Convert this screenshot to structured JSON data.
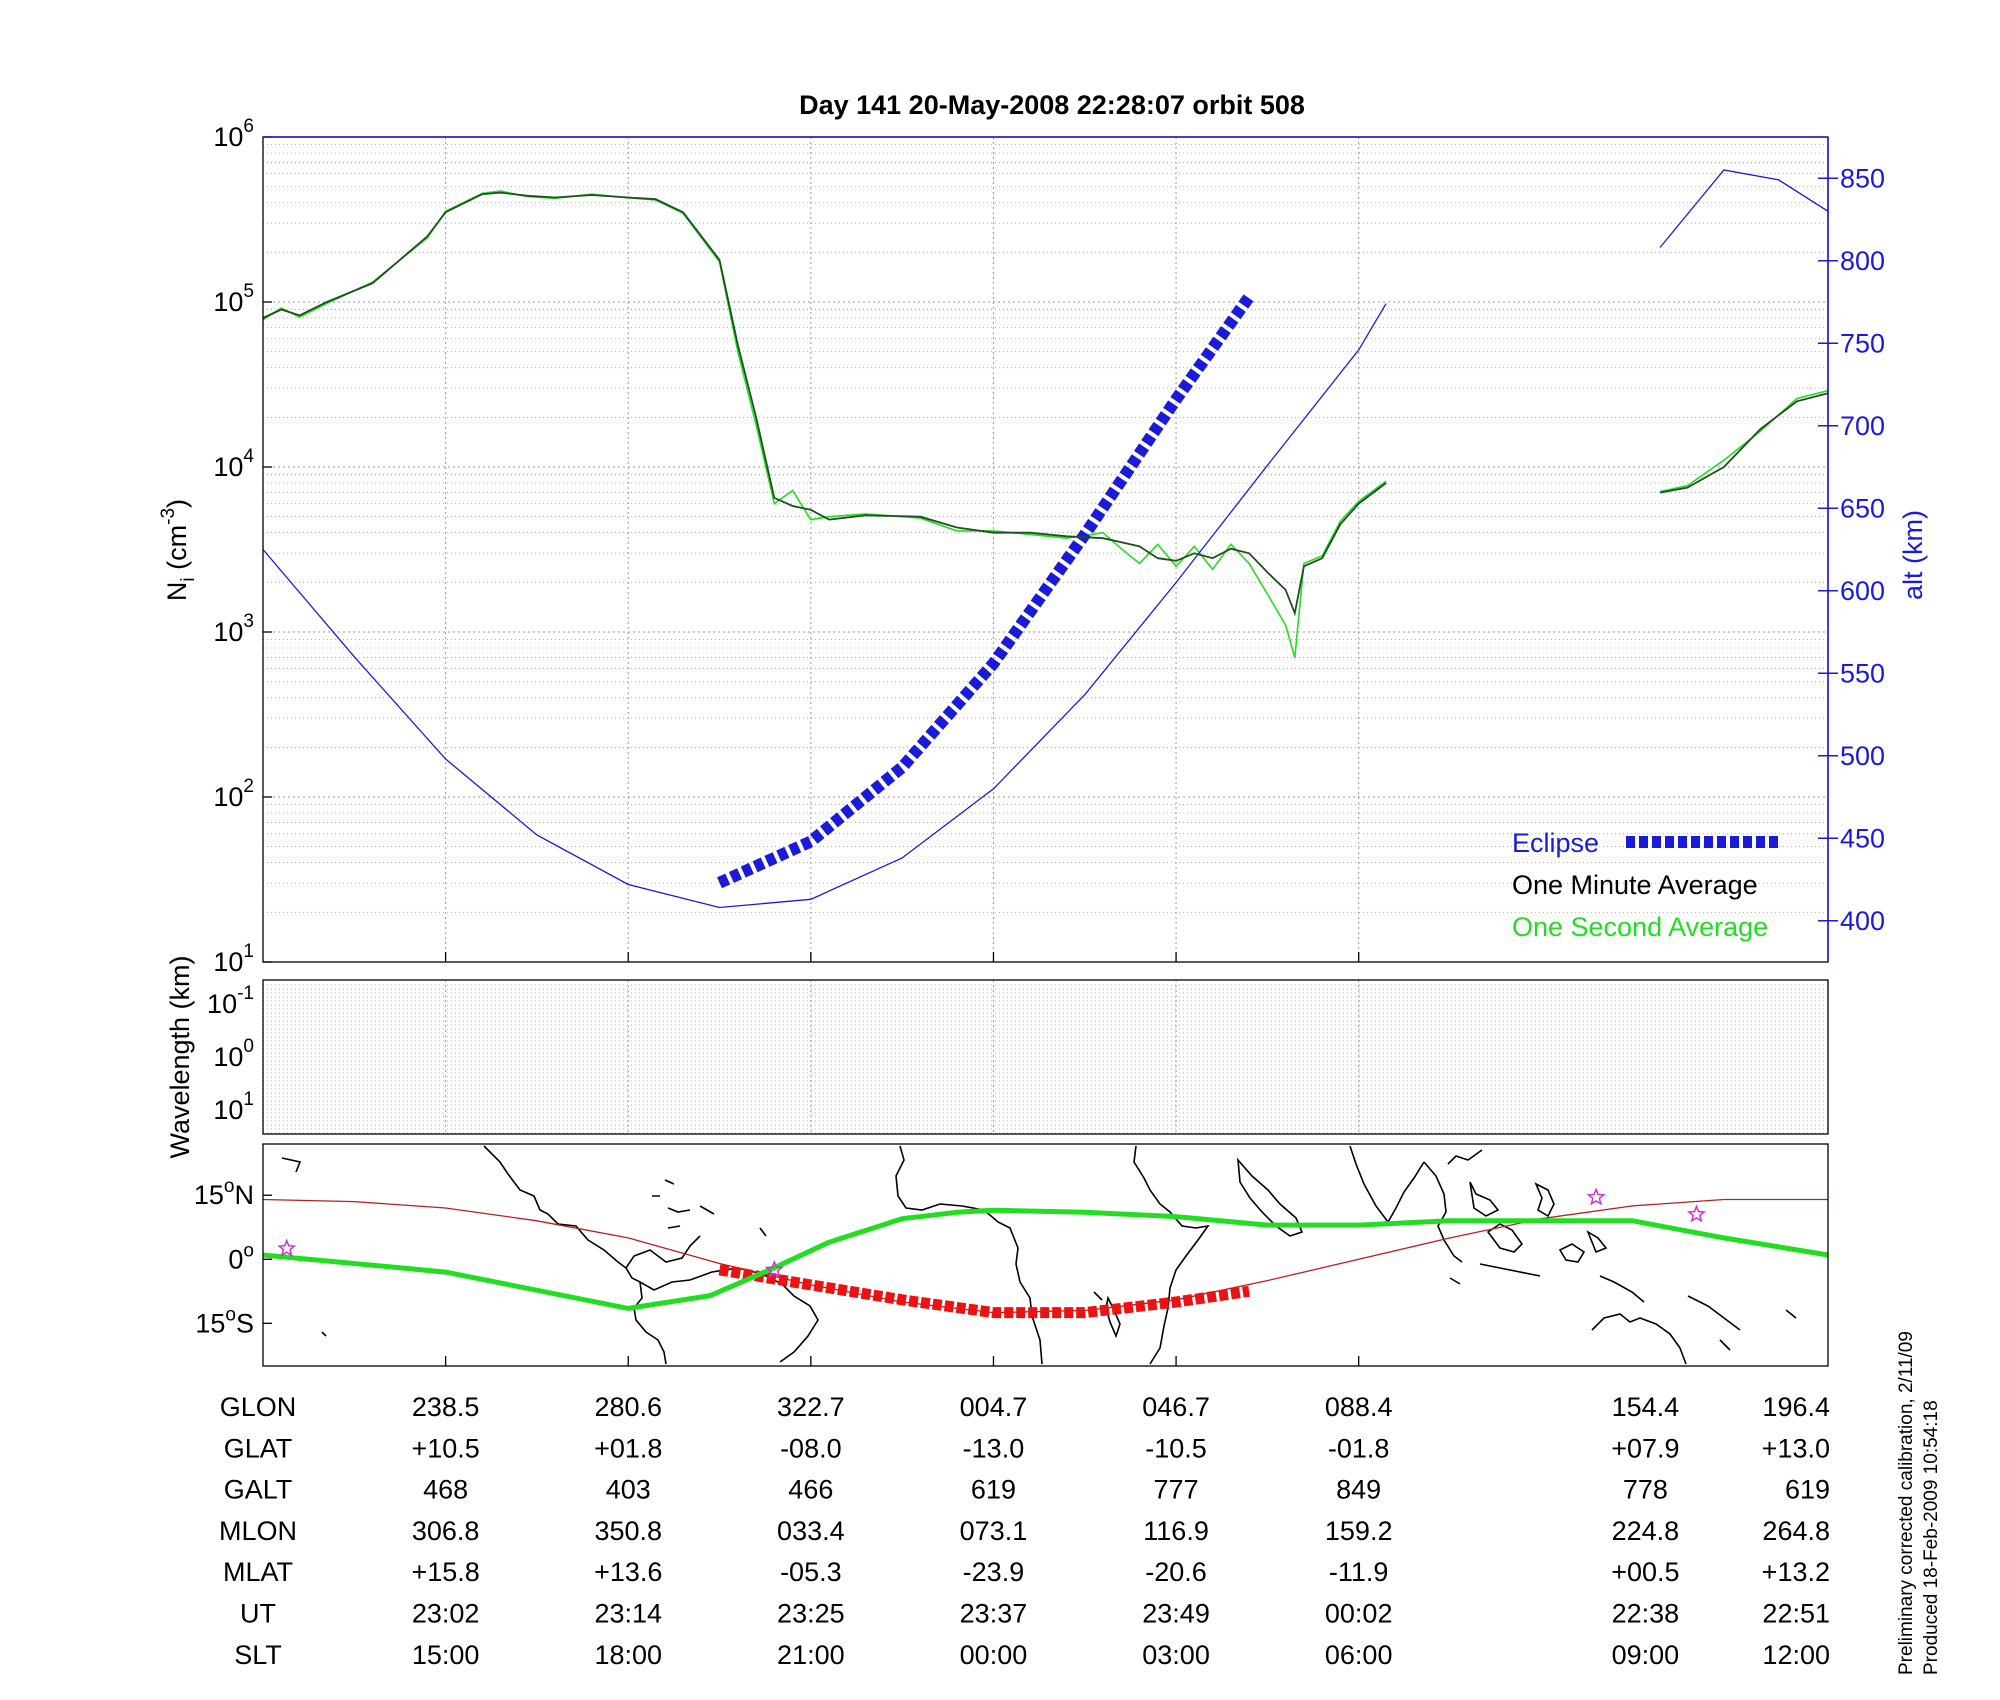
{
  "chart_data": [
    {
      "type": "line",
      "title": "Day 141  20-May-2008 22:28:07   orbit 508",
      "ylabel": "N",
      "ylabel_sub": "i",
      "ylabel_unit": " (cm",
      "ylabel_unit_sup": "-3",
      "ylabel_unit_end": ")",
      "yscale": "log",
      "ylim": [
        10,
        1000000
      ],
      "y_ticks": [
        {
          "base": "10",
          "exp": "1",
          "value": 10
        },
        {
          "base": "10",
          "exp": "2",
          "value": 100
        },
        {
          "base": "10",
          "exp": "3",
          "value": 1000
        },
        {
          "base": "10",
          "exp": "4",
          "value": 10000
        },
        {
          "base": "10",
          "exp": "5",
          "value": 100000
        },
        {
          "base": "10",
          "exp": "6",
          "value": 1000000
        }
      ],
      "y2label": "alt (km)",
      "y2lim": [
        375,
        875
      ],
      "y2_ticks": [
        "400",
        "450",
        "500",
        "550",
        "600",
        "650",
        "700",
        "750",
        "800",
        "850"
      ],
      "xlim": [
        0,
        8.57
      ],
      "legend_position": "lower-right",
      "legend": [
        {
          "label": "Eclipse",
          "color": "#1a1ad9"
        },
        {
          "label": "One Minute Average",
          "color": "#000000"
        },
        {
          "label": "One Second Average",
          "color": "#22dd22"
        }
      ],
      "series": [
        {
          "name": "One Minute Average",
          "color": "#1f4f1f",
          "gap": [
            6.15,
            7.65
          ],
          "x": [
            0,
            0.1,
            0.2,
            0.35,
            0.6,
            0.9,
            1.0,
            1.2,
            1.3,
            1.45,
            1.6,
            1.8,
            2.0,
            2.15,
            2.3,
            2.5,
            2.6,
            2.7,
            2.8,
            2.9,
            3.0,
            3.1,
            3.3,
            3.6,
            3.8,
            4.0,
            4.2,
            4.4,
            4.6,
            4.7,
            4.8,
            4.9,
            5.0,
            5.1,
            5.2,
            5.3,
            5.4,
            5.5,
            5.6,
            5.65,
            5.7,
            5.8,
            5.9,
            6.0,
            6.15,
            7.65,
            7.8,
            8.0,
            8.2,
            8.4,
            8.57
          ],
          "y": [
            80000,
            90000,
            83000,
            100000,
            130000,
            250000,
            350000,
            450000,
            460000,
            440000,
            430000,
            445000,
            430000,
            420000,
            350000,
            180000,
            55000,
            20000,
            6500,
            5800,
            5500,
            4800,
            5100,
            5000,
            4300,
            4000,
            4000,
            3800,
            3700,
            3500,
            3300,
            2800,
            2700,
            3000,
            2800,
            3200,
            3000,
            2300,
            1800,
            1300,
            2500,
            2800,
            4500,
            6000,
            8000,
            7000,
            7500,
            10000,
            17000,
            25000,
            28000
          ]
        },
        {
          "name": "One Second Average",
          "color": "#22dd22",
          "gap": [
            6.15,
            7.65
          ],
          "x": [
            0,
            0.1,
            0.2,
            0.35,
            0.6,
            0.9,
            1.0,
            1.2,
            1.3,
            1.45,
            1.6,
            1.8,
            2.0,
            2.15,
            2.3,
            2.5,
            2.6,
            2.7,
            2.8,
            2.9,
            3.0,
            3.1,
            3.3,
            3.6,
            3.8,
            4.0,
            4.2,
            4.4,
            4.6,
            4.7,
            4.8,
            4.9,
            5.0,
            5.1,
            5.2,
            5.3,
            5.4,
            5.5,
            5.6,
            5.65,
            5.7,
            5.8,
            5.9,
            6.0,
            6.15,
            7.65,
            7.8,
            8.0,
            8.2,
            8.4,
            8.57
          ],
          "y": [
            78000,
            92000,
            81000,
            98000,
            132000,
            245000,
            355000,
            455000,
            470000,
            435000,
            425000,
            450000,
            428000,
            415000,
            345000,
            175000,
            50000,
            18000,
            6000,
            7200,
            4800,
            5000,
            5200,
            4900,
            4100,
            4100,
            3900,
            3700,
            4000,
            3200,
            2600,
            3400,
            2500,
            3300,
            2400,
            3400,
            2600,
            1700,
            1100,
            700,
            2600,
            2900,
            4700,
            6200,
            8200,
            7100,
            7700,
            11000,
            16500,
            26000,
            29000
          ]
        },
        {
          "name": "Altitude",
          "axis": "right",
          "color": "#1a1ad9",
          "gap": [
            6.15,
            7.65
          ],
          "x": [
            0,
            0.5,
            1.0,
            1.5,
            2.0,
            2.5,
            3.0,
            3.5,
            4.0,
            4.5,
            5.0,
            5.5,
            6.0,
            6.15,
            7.65,
            8.0,
            8.3,
            8.57
          ],
          "y": [
            625,
            560,
            498,
            452,
            422,
            408,
            413,
            438,
            480,
            537,
            605,
            676,
            746,
            774,
            808,
            855,
            849,
            830
          ]
        },
        {
          "name": "Eclipse",
          "axis": "right",
          "color": "#1a1ad9",
          "x": [
            2.5,
            3.0,
            3.5,
            4.0,
            4.5,
            5.0,
            5.4
          ],
          "y": [
            423,
            448,
            493,
            556,
            634,
            716,
            778
          ]
        }
      ]
    },
    {
      "type": "line",
      "ylabel": "Wavelength (km)",
      "y_ticks": [
        {
          "base": "10",
          "exp": "-1"
        },
        {
          "base": "10",
          "exp": "0"
        },
        {
          "base": "10",
          "exp": "1"
        }
      ]
    },
    {
      "type": "line",
      "y_ticks": [
        {
          "label": "15",
          "sup": "o",
          "suffix": "N",
          "value": 15
        },
        {
          "label": "0",
          "sup": "o",
          "suffix": "",
          "value": 0
        },
        {
          "label": "15",
          "sup": "o",
          "suffix": "S",
          "value": -15
        }
      ],
      "ylim": [
        -25,
        27
      ],
      "series": [
        {
          "name": "Orbit track",
          "color": "#b22222",
          "x": [
            0,
            0.5,
            1.0,
            1.5,
            2.0,
            2.5,
            3.0,
            3.5,
            4.0,
            4.5,
            5.0,
            5.5,
            6.0,
            6.5,
            7.0,
            7.5,
            8.0,
            8.57
          ],
          "y": [
            14,
            13.5,
            12,
            9,
            5,
            -1,
            -6,
            -10,
            -12.5,
            -12,
            -9.5,
            -5,
            0,
            5,
            9.5,
            12.5,
            14,
            14
          ]
        },
        {
          "name": "Eclipse track",
          "color": "#ee1111",
          "x": [
            2.5,
            3.0,
            3.5,
            4.0,
            4.5,
            5.0,
            5.4
          ],
          "y": [
            -2.5,
            -6,
            -9.5,
            -12.5,
            -12.5,
            -10,
            -7.5
          ]
        },
        {
          "name": "Magnetic equator",
          "color": "#22dd22",
          "x": [
            0,
            1.0,
            2.0,
            2.45,
            2.8,
            3.1,
            3.5,
            3.8,
            4.0,
            4.5,
            5.0,
            5.5,
            6.0,
            6.5,
            7.0,
            7.5,
            8.0,
            8.57
          ],
          "y": [
            1,
            -3,
            -11.5,
            -8.5,
            -2,
            4,
            9.5,
            11,
            11.5,
            11,
            10,
            8,
            8,
            9,
            9,
            9,
            5,
            1
          ]
        },
        {
          "name": "Stars",
          "color": "#cc33cc",
          "x": [
            0.13,
            2.8,
            7.3,
            7.85
          ],
          "y": [
            2.5,
            -2.5,
            14.5,
            10.5
          ]
        }
      ]
    }
  ],
  "table": {
    "rows": [
      {
        "label": "GLON",
        "values": [
          "238.5",
          "280.6",
          "322.7",
          "004.7",
          "046.7",
          "088.4",
          "154.4",
          "196.4"
        ]
      },
      {
        "label": "GLAT",
        "values": [
          "+10.5",
          "+01.8",
          "-08.0",
          "-13.0",
          "-10.5",
          "-01.8",
          "+07.9",
          "+13.0"
        ]
      },
      {
        "label": "GALT",
        "values": [
          "468",
          "403",
          "466",
          "619",
          "777",
          "849",
          "778",
          "619"
        ]
      },
      {
        "label": "MLON",
        "values": [
          "306.8",
          "350.8",
          "033.4",
          "073.1",
          "116.9",
          "159.2",
          "224.8",
          "264.8"
        ]
      },
      {
        "label": "MLAT",
        "values": [
          "+15.8",
          "+13.6",
          "-05.3",
          "-23.9",
          "-20.6",
          "-11.9",
          "+00.5",
          "+13.2"
        ]
      },
      {
        "label": "UT",
        "values": [
          "23:02",
          "23:14",
          "23:25",
          "23:37",
          "23:49",
          "00:02",
          "22:38",
          "22:51"
        ]
      },
      {
        "label": "SLT",
        "values": [
          "15:00",
          "18:00",
          "21:00",
          "00:00",
          "03:00",
          "06:00",
          "09:00",
          "12:00"
        ]
      }
    ],
    "column_positions": [
      1,
      2,
      3,
      4,
      5,
      6,
      7.57,
      8.57
    ]
  },
  "footer": {
    "line1": "Preliminary corrected calibration, 2/11/09",
    "line2": "Produced 18-Feb-2009 10:54:18"
  }
}
